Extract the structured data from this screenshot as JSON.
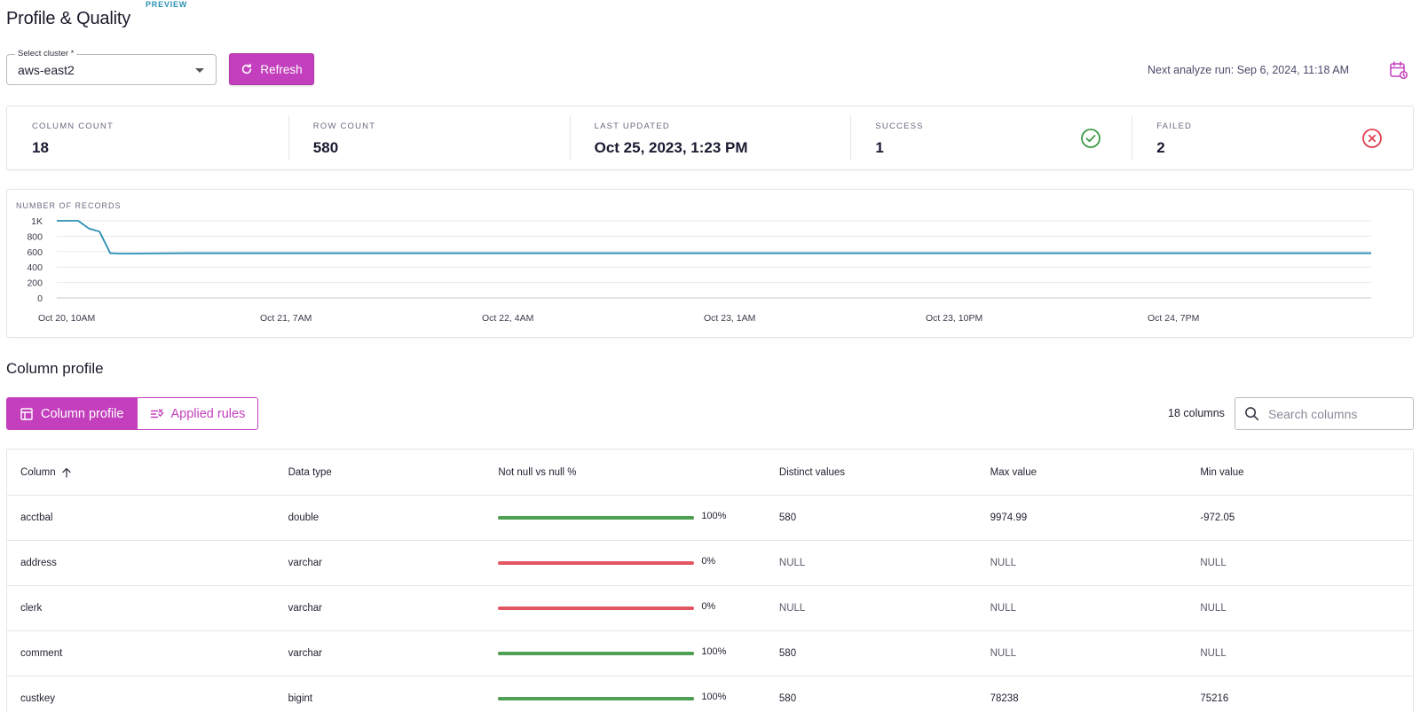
{
  "header": {
    "title": "Profile & Quality",
    "badge": "PREVIEW"
  },
  "cluster": {
    "label": "Select cluster *",
    "value": "aws-east2"
  },
  "toolbar": {
    "refresh_label": "Refresh",
    "next_run": "Next analyze run: Sep 6, 2024, 11:18 AM"
  },
  "stats": [
    {
      "label": "COLUMN COUNT",
      "value": "18"
    },
    {
      "label": "ROW COUNT",
      "value": "580"
    },
    {
      "label": "LAST UPDATED",
      "value": "Oct 25, 2023, 1:23 PM"
    },
    {
      "label": "SUCCESS",
      "value": "1",
      "icon": "check-circle-icon",
      "color": "#3d9a46"
    },
    {
      "label": "FAILED",
      "value": "2",
      "icon": "x-circle-icon",
      "color": "#e0404f"
    }
  ],
  "chart_data": {
    "type": "line",
    "title": "NUMBER OF RECORDS",
    "yticks": [
      "0",
      "200",
      "400",
      "600",
      "800",
      "1K"
    ],
    "ylim": [
      0,
      1000
    ],
    "xticks": [
      "Oct 20, 10AM",
      "Oct 21, 7AM",
      "Oct 22, 4AM",
      "Oct 23, 1AM",
      "Oct 23, 10PM",
      "Oct 24, 7PM"
    ],
    "x_hours": [
      0,
      1,
      2,
      3,
      4,
      5,
      6,
      12,
      21,
      42,
      63,
      84,
      105,
      123
    ],
    "series": [
      {
        "values": [
          1000,
          1000,
          1000,
          900,
          860,
          580,
          575,
          580,
          580,
          580,
          580,
          580,
          580,
          580
        ],
        "color": "#2a8fb3"
      }
    ],
    "grid": true
  },
  "section": {
    "title": "Column profile",
    "tab_profile": "Column profile",
    "tab_rules": "Applied rules",
    "count_label": "18 columns",
    "search_placeholder": "Search columns"
  },
  "table": {
    "headers": [
      "Column",
      "Data type",
      "Not null vs null %",
      "Distinct values",
      "Max value",
      "Min value"
    ],
    "rows": [
      {
        "column": "acctbal",
        "type": "double",
        "notnull_pct": 100,
        "pct_label": "100%",
        "distinct": "580",
        "max": "9974.99",
        "min": "-972.05"
      },
      {
        "column": "address",
        "type": "varchar",
        "notnull_pct": 0,
        "pct_label": "0%",
        "distinct": "NULL",
        "max": "NULL",
        "min": "NULL"
      },
      {
        "column": "clerk",
        "type": "varchar",
        "notnull_pct": 0,
        "pct_label": "0%",
        "distinct": "NULL",
        "max": "NULL",
        "min": "NULL"
      },
      {
        "column": "comment",
        "type": "varchar",
        "notnull_pct": 100,
        "pct_label": "100%",
        "distinct": "580",
        "max": "NULL",
        "min": "NULL"
      },
      {
        "column": "custkey",
        "type": "bigint",
        "notnull_pct": 100,
        "pct_label": "100%",
        "distinct": "580",
        "max": "78238",
        "min": "75216"
      }
    ]
  },
  "colors": {
    "accent": "#c33fbd",
    "line": "#2a8fb3",
    "ok": "#4ca152",
    "bad": "#e25663"
  }
}
